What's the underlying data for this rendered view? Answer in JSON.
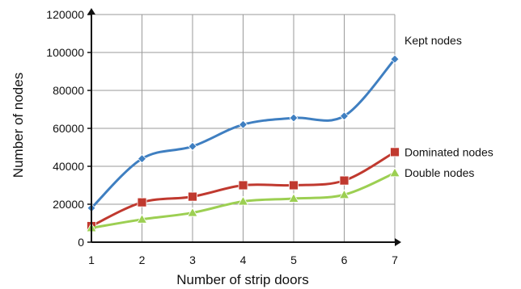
{
  "chart_data": {
    "type": "line",
    "title": "",
    "xlabel": "Number of strip doors",
    "ylabel": "Number of nodes",
    "x": [
      1,
      2,
      3,
      4,
      5,
      6,
      7
    ],
    "xlim": [
      1,
      7
    ],
    "ylim": [
      0,
      120000
    ],
    "yticks": [
      "0",
      "20000",
      "40000",
      "60000",
      "80000",
      "100000",
      "120000"
    ],
    "xticks": [
      "1",
      "2",
      "3",
      "4",
      "5",
      "6",
      "7"
    ],
    "grid": true,
    "legend": "inline labels at right end of each series",
    "series": [
      {
        "name": "Kept nodes",
        "color": "#3f7fc1",
        "marker": "diamond",
        "values": [
          18000,
          44000,
          50500,
          62000,
          65500,
          66500,
          96500
        ]
      },
      {
        "name": "Dominated nodes",
        "color": "#c0392f",
        "marker": "square",
        "values": [
          8500,
          21000,
          24000,
          30000,
          30000,
          32500,
          47500
        ]
      },
      {
        "name": "Double nodes",
        "color": "#9ccf52",
        "marker": "triangle",
        "values": [
          7500,
          12000,
          15500,
          21500,
          23000,
          25000,
          36500
        ]
      }
    ]
  }
}
